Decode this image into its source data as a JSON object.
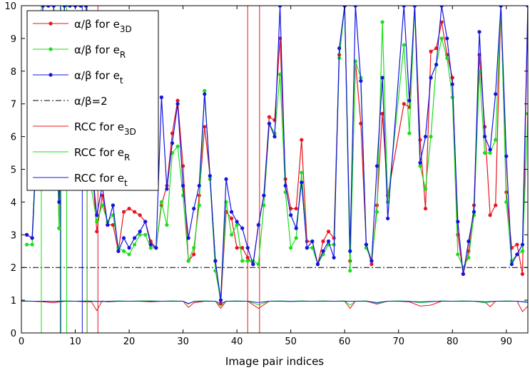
{
  "chart_data": {
    "type": "line",
    "xlabel": "Image pair indices",
    "ylabel": "",
    "xlim": [
      0,
      94
    ],
    "ylim": [
      0,
      10
    ],
    "xticks": [
      0,
      10,
      20,
      30,
      40,
      50,
      60,
      70,
      80,
      90
    ],
    "yticks": [
      0,
      1,
      2,
      3,
      4,
      5,
      6,
      7,
      8,
      9,
      10
    ],
    "grid": false,
    "legend_position": "top-left",
    "colors": {
      "red": "#e8141e",
      "green": "#18e018",
      "blue": "#1414e0",
      "black": "#000000"
    },
    "threshold": {
      "name": "α/β=2",
      "y": 2
    },
    "alpha_beta_series": [
      {
        "name": "α/β for e3D",
        "label_main": "α/β for e",
        "label_sub": "3D",
        "color": "red",
        "x": [
          1,
          2,
          4,
          5,
          6,
          7,
          8,
          9,
          10,
          11,
          12,
          13,
          14,
          15,
          16,
          17,
          18,
          19,
          20,
          21,
          22,
          23,
          24,
          25,
          26,
          27,
          28,
          29,
          30,
          31,
          32,
          33,
          34,
          35,
          36,
          37,
          38,
          39,
          40,
          41,
          42,
          43,
          44,
          45,
          46,
          47,
          48,
          49,
          50,
          51,
          52,
          53,
          54,
          55,
          56,
          57,
          58,
          59,
          60,
          61,
          62,
          63,
          64,
          65,
          66,
          67,
          68,
          71,
          72,
          73,
          74,
          75,
          76,
          77,
          78,
          79,
          80,
          81,
          82,
          83,
          84,
          85,
          86,
          87,
          88,
          89,
          90,
          91,
          92,
          93,
          94
        ],
        "y": [
          3.0,
          2.9,
          10,
          10,
          10,
          3.2,
          10,
          10,
          10,
          10,
          10,
          5.4,
          3.1,
          4.2,
          3.3,
          3.3,
          2.5,
          3.7,
          3.8,
          3.7,
          3.6,
          3.4,
          2.8,
          2.6,
          3.9,
          4.5,
          6.1,
          7.1,
          5.1,
          2.2,
          2.4,
          4.2,
          6.3,
          4.8,
          2.2,
          0.9,
          3.7,
          3.5,
          2.6,
          2.6,
          2.3,
          2.1,
          3.3,
          4.2,
          6.6,
          6.5,
          9.0,
          4.7,
          3.8,
          3.8,
          5.9,
          2.8,
          2.8,
          2.1,
          2.8,
          3.1,
          2.9,
          8.5,
          10,
          2.2,
          8.3,
          6.4,
          2.7,
          2.1,
          3.9,
          6.7,
          4.2,
          7.0,
          6.9,
          10,
          5.9,
          3.8,
          8.6,
          8.7,
          9.5,
          8.5,
          7.8,
          3.0,
          1.8,
          2.5,
          3.9,
          8.5,
          6.3,
          3.6,
          3.9,
          10,
          4.3,
          2.6,
          2.7,
          1.8,
          10
        ]
      },
      {
        "name": "α/β for eR",
        "label_main": "α/β for e",
        "label_sub": "R",
        "color": "green",
        "x": [
          1,
          2,
          4,
          5,
          6,
          7,
          8,
          9,
          10,
          11,
          12,
          13,
          14,
          15,
          16,
          17,
          18,
          19,
          20,
          21,
          22,
          23,
          24,
          25,
          26,
          27,
          28,
          29,
          30,
          31,
          32,
          33,
          34,
          35,
          36,
          37,
          38,
          39,
          40,
          41,
          42,
          43,
          44,
          45,
          46,
          47,
          48,
          49,
          50,
          51,
          52,
          53,
          54,
          55,
          56,
          57,
          58,
          59,
          60,
          61,
          62,
          63,
          64,
          65,
          66,
          67,
          68,
          71,
          72,
          73,
          74,
          75,
          76,
          77,
          78,
          79,
          80,
          81,
          82,
          83,
          84,
          85,
          86,
          87,
          88,
          89,
          90,
          91,
          92,
          93,
          94
        ],
        "y": [
          2.7,
          2.7,
          10,
          10,
          10,
          3.2,
          10,
          10,
          10,
          10,
          10,
          4.4,
          3.4,
          3.9,
          3.4,
          3.6,
          2.6,
          2.5,
          2.4,
          2.7,
          3.0,
          3.0,
          2.6,
          2.6,
          4.0,
          3.3,
          5.5,
          5.7,
          4.2,
          2.2,
          2.6,
          3.9,
          7.4,
          4.7,
          1.9,
          1.0,
          4.0,
          3.0,
          3.3,
          2.2,
          2.2,
          2.2,
          2.1,
          3.9,
          6.4,
          6.1,
          7.9,
          4.3,
          2.6,
          2.9,
          4.9,
          2.6,
          2.6,
          2.1,
          2.4,
          2.7,
          2.7,
          8.4,
          10,
          1.9,
          8.3,
          7.8,
          2.6,
          2.2,
          3.7,
          9.5,
          4.0,
          8.8,
          6.1,
          10,
          5.1,
          4.4,
          6.0,
          8.2,
          9.0,
          8.4,
          7.2,
          2.4,
          2.0,
          2.3,
          3.6,
          8.0,
          5.5,
          5.5,
          5.9,
          10,
          4.0,
          2.2,
          2.4,
          2.5,
          6.7
        ]
      },
      {
        "name": "α/β for et",
        "label_main": "α/β for e",
        "label_sub": "t",
        "color": "blue",
        "x": [
          1,
          2,
          4,
          5,
          6,
          7,
          8,
          9,
          10,
          11,
          12,
          13,
          14,
          15,
          16,
          17,
          18,
          19,
          20,
          21,
          22,
          23,
          24,
          25,
          26,
          27,
          28,
          29,
          30,
          31,
          32,
          33,
          34,
          35,
          36,
          37,
          38,
          39,
          40,
          41,
          42,
          43,
          44,
          45,
          46,
          47,
          48,
          49,
          50,
          51,
          52,
          53,
          54,
          55,
          56,
          57,
          58,
          59,
          60,
          61,
          62,
          63,
          64,
          65,
          66,
          67,
          68,
          71,
          72,
          73,
          74,
          75,
          76,
          77,
          78,
          79,
          80,
          81,
          82,
          83,
          84,
          85,
          86,
          87,
          88,
          89,
          90,
          91,
          92,
          93,
          94
        ],
        "y": [
          3.0,
          2.9,
          10,
          10,
          10,
          4.0,
          10,
          10,
          10,
          10,
          10,
          5.2,
          3.6,
          4.5,
          3.3,
          3.9,
          2.5,
          2.9,
          2.6,
          2.9,
          3.1,
          3.4,
          2.7,
          2.6,
          7.2,
          4.4,
          5.8,
          7.0,
          4.5,
          2.9,
          3.8,
          4.5,
          7.3,
          4.8,
          2.2,
          1.0,
          4.7,
          3.7,
          3.4,
          3.2,
          2.6,
          2.1,
          3.3,
          4.2,
          6.4,
          6.0,
          10,
          4.5,
          3.6,
          3.2,
          4.6,
          2.6,
          2.8,
          2.1,
          2.5,
          2.8,
          2.3,
          8.7,
          10,
          2.5,
          10,
          7.7,
          2.7,
          2.2,
          5.1,
          7.8,
          3.5,
          10,
          7.1,
          10,
          5.2,
          6.0,
          7.8,
          8.2,
          10,
          9.0,
          7.6,
          3.4,
          1.8,
          2.8,
          3.7,
          9.2,
          6.0,
          5.6,
          7.3,
          10,
          5.4,
          2.1,
          2.4,
          2.7,
          10
        ]
      }
    ],
    "rcc_series": [
      {
        "name": "RCC for e3D",
        "label_main": "RCC for e",
        "label_sub": "3D",
        "color": "red",
        "x": [
          0,
          2,
          4,
          6,
          8,
          10,
          12,
          13,
          14,
          15,
          16,
          18,
          20,
          22,
          24,
          26,
          28,
          30,
          31,
          32,
          34,
          36,
          37,
          38,
          40,
          42,
          44,
          46,
          48,
          50,
          52,
          54,
          56,
          58,
          60,
          61,
          62,
          64,
          66,
          68,
          70,
          72,
          74,
          76,
          78,
          80,
          82,
          84,
          86,
          87,
          88,
          90,
          92,
          93,
          94
        ],
        "y": [
          0.97,
          0.97,
          0.95,
          0.92,
          0.97,
          0.97,
          0.95,
          0.95,
          0.68,
          0.98,
          0.95,
          0.97,
          0.97,
          0.97,
          0.95,
          0.97,
          0.97,
          0.97,
          0.78,
          0.92,
          0.97,
          0.97,
          0.75,
          0.97,
          0.97,
          0.97,
          0.75,
          0.97,
          0.97,
          0.97,
          0.97,
          0.97,
          0.97,
          0.97,
          0.97,
          0.75,
          0.97,
          0.97,
          0.88,
          0.97,
          0.97,
          0.95,
          0.82,
          0.85,
          0.97,
          0.97,
          0.97,
          0.97,
          0.95,
          0.8,
          0.97,
          0.97,
          0.97,
          0.65,
          0.82
        ]
      },
      {
        "name": "RCC for eR",
        "label_main": "RCC for e",
        "label_sub": "R",
        "color": "green",
        "x": [
          0,
          2,
          4,
          6,
          8,
          10,
          12,
          14,
          16,
          18,
          20,
          22,
          24,
          26,
          28,
          30,
          31,
          32,
          34,
          36,
          37,
          38,
          40,
          42,
          44,
          46,
          48,
          50,
          52,
          54,
          56,
          58,
          60,
          61,
          62,
          64,
          66,
          68,
          70,
          72,
          74,
          76,
          78,
          80,
          82,
          84,
          86,
          88,
          90,
          92,
          94
        ],
        "y": [
          0.98,
          0.97,
          0.97,
          0.97,
          0.98,
          0.97,
          0.98,
          0.97,
          0.97,
          0.98,
          0.97,
          0.98,
          0.98,
          0.97,
          0.98,
          0.97,
          0.88,
          0.97,
          0.98,
          0.97,
          0.82,
          0.97,
          0.98,
          0.97,
          0.86,
          0.97,
          0.98,
          0.97,
          0.98,
          0.97,
          0.98,
          0.97,
          0.98,
          0.85,
          0.97,
          0.98,
          0.9,
          0.97,
          0.98,
          0.97,
          0.92,
          0.95,
          0.98,
          0.97,
          0.98,
          0.97,
          0.92,
          0.97,
          0.98,
          0.97,
          0.95
        ]
      },
      {
        "name": "RCC for et",
        "label_main": "RCC for e",
        "label_sub": "t",
        "color": "blue",
        "x": [
          0,
          2,
          4,
          6,
          8,
          10,
          12,
          14,
          16,
          18,
          20,
          22,
          24,
          26,
          28,
          30,
          31,
          32,
          34,
          36,
          37,
          38,
          40,
          42,
          44,
          46,
          48,
          50,
          52,
          54,
          56,
          58,
          60,
          62,
          64,
          66,
          68,
          70,
          72,
          74,
          76,
          78,
          80,
          82,
          84,
          86,
          88,
          90,
          92,
          94
        ],
        "y": [
          0.97,
          0.97,
          0.97,
          0.96,
          0.97,
          0.97,
          0.97,
          0.96,
          0.96,
          0.97,
          0.97,
          0.97,
          0.97,
          0.97,
          0.97,
          0.97,
          0.9,
          0.96,
          0.97,
          0.97,
          0.9,
          0.97,
          0.97,
          0.97,
          0.93,
          0.97,
          0.97,
          0.96,
          0.97,
          0.97,
          0.97,
          0.97,
          0.97,
          0.97,
          0.97,
          0.93,
          0.97,
          0.97,
          0.96,
          0.95,
          0.96,
          0.97,
          0.97,
          0.97,
          0.97,
          0.95,
          0.97,
          0.97,
          0.97,
          0.93
        ]
      }
    ],
    "vertical_lines": [
      {
        "color": "red",
        "x": [
          12.2,
          14.2,
          42,
          44.2
        ]
      },
      {
        "color": "green",
        "x": [
          3.7,
          7.2,
          8.4,
          12.2
        ]
      },
      {
        "color": "blue",
        "x": [
          7.3,
          11.3
        ]
      }
    ]
  },
  "legend": {
    "items": [
      {
        "main": "α/β for e",
        "sub": "3D",
        "color": "red",
        "kind": "markers"
      },
      {
        "main": "α/β for e",
        "sub": "R",
        "color": "green",
        "kind": "markers"
      },
      {
        "main": "α/β for e",
        "sub": "t",
        "color": "blue",
        "kind": "markers"
      },
      {
        "main": "α/β=2",
        "sub": "",
        "color": "black",
        "kind": "dashdot"
      },
      {
        "main": "RCC for e",
        "sub": "3D",
        "color": "red",
        "kind": "line"
      },
      {
        "main": "RCC for e",
        "sub": "R",
        "color": "green",
        "kind": "line"
      },
      {
        "main": "RCC for e",
        "sub": "t",
        "color": "blue",
        "kind": "line"
      }
    ]
  }
}
